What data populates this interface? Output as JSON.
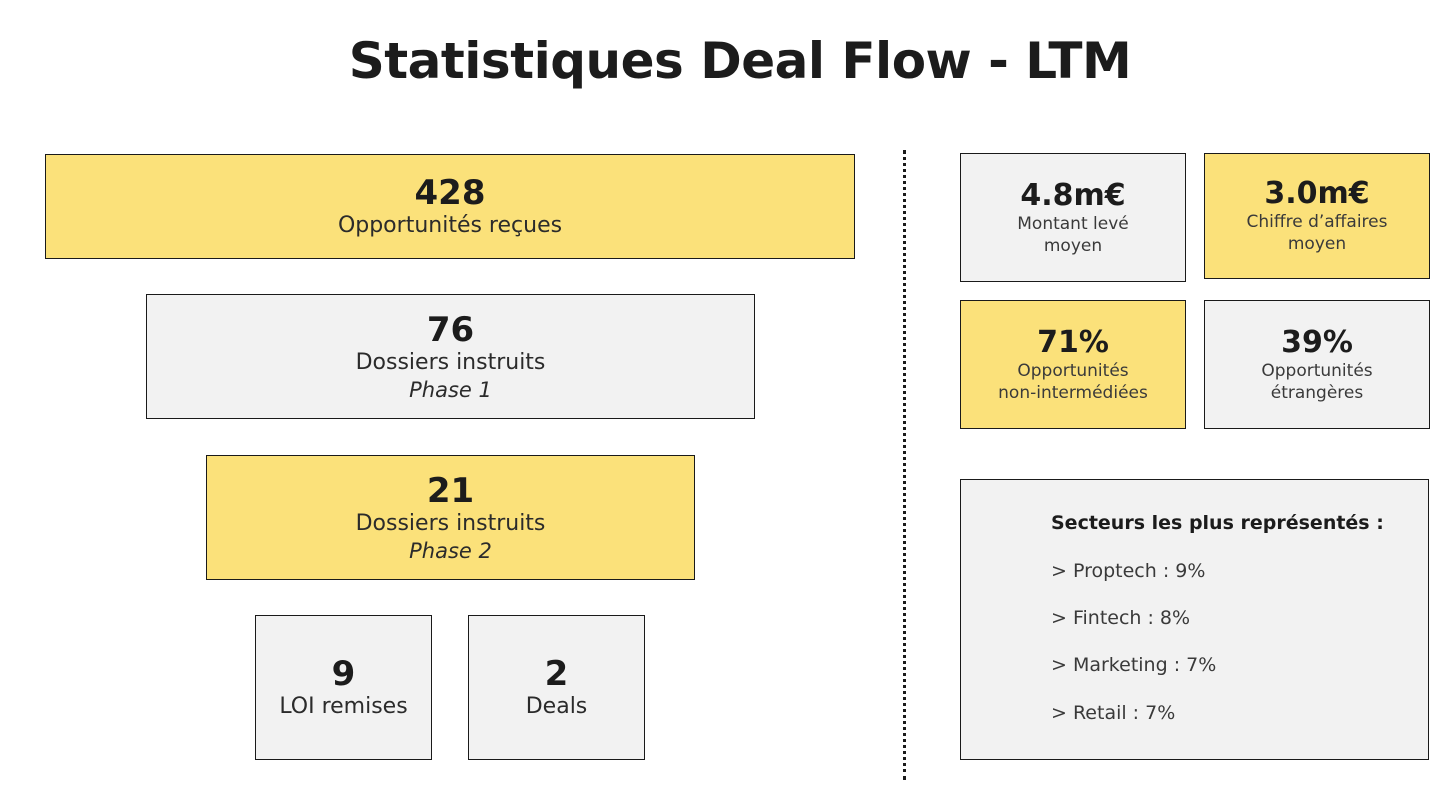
{
  "title": "Statistiques Deal Flow - LTM",
  "colors": {
    "yellow": "#fbe17a",
    "grey": "#f2f2f2",
    "border": "#1a1a1a",
    "text": "#1c1c1c"
  },
  "funnel": {
    "received": {
      "value": "428",
      "label": "Opportunités reçues"
    },
    "phase1": {
      "value": "76",
      "label": "Dossiers instruits",
      "sub": "Phase 1"
    },
    "phase2": {
      "value": "21",
      "label": "Dossiers instruits",
      "sub": "Phase 2"
    },
    "loi": {
      "value": "9",
      "label": "LOI remises"
    },
    "deals": {
      "value": "2",
      "label": "Deals"
    }
  },
  "kpis": {
    "avg_raised": {
      "value": "4.8m€",
      "label_line1": "Montant levé",
      "label_line2": "moyen"
    },
    "avg_revenue": {
      "value": "3.0m€",
      "label_line1": "Chiffre d’affaires",
      "label_line2": "moyen"
    },
    "non_intermediated": {
      "value": "71%",
      "label_line1": "Opportunités",
      "label_line2": "non-intermédiées"
    },
    "foreign": {
      "value": "39%",
      "label_line1": "Opportunités",
      "label_line2": "étrangères"
    }
  },
  "sectors": {
    "title": "Secteurs les plus représentés :",
    "items": [
      "> Proptech : 9%",
      "> Fintech : 8%",
      "> Marketing : 7%",
      "> Retail : 7%"
    ]
  }
}
